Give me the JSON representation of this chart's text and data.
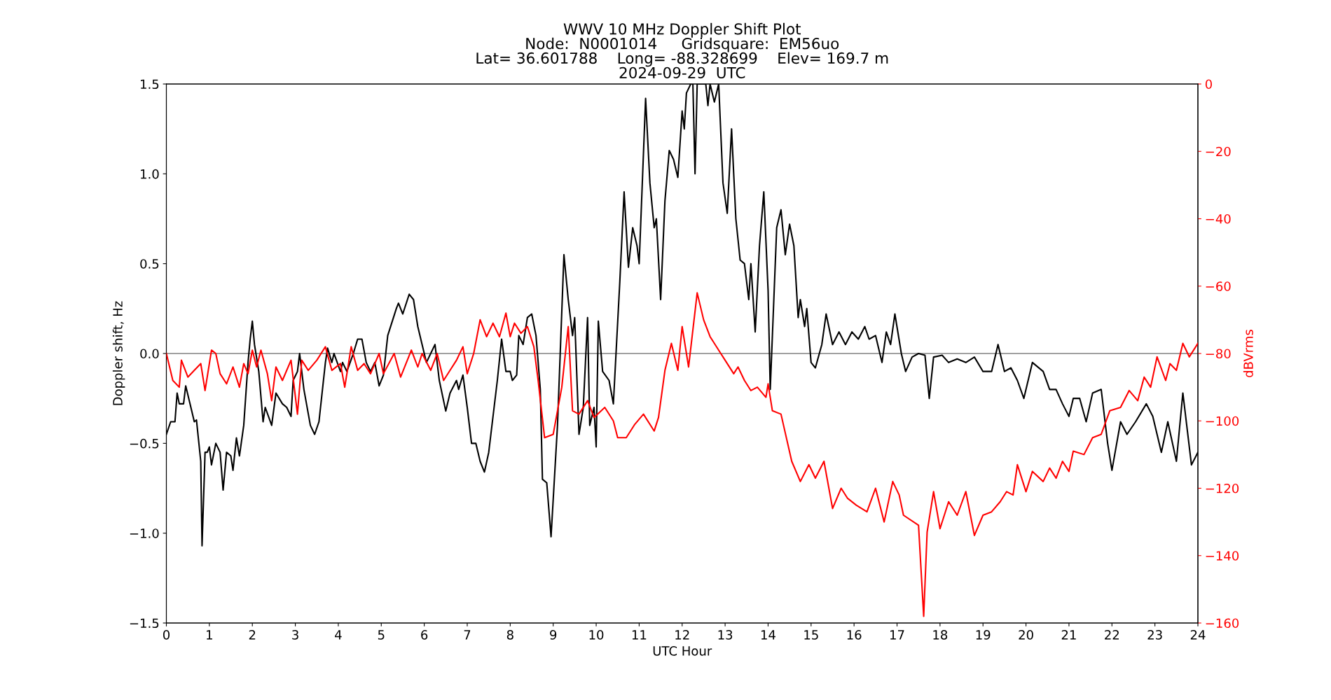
{
  "chart_data": {
    "type": "line",
    "title": "WWV 10 MHz Doppler Shift Plot\nNode:  N0001014     Gridsquare:  EM56uo\nLat= 36.601788    Long= -88.328699    Elev= 169.7 m\n2024-09-29  UTC",
    "xlabel": "UTC Hour",
    "ylabel": "Doppler shift, Hz",
    "y2label": "dBVrms",
    "xlim": [
      0,
      24
    ],
    "xticks": [
      0,
      1,
      2,
      3,
      4,
      5,
      6,
      7,
      8,
      9,
      10,
      11,
      12,
      13,
      14,
      15,
      16,
      17,
      18,
      19,
      20,
      21,
      22,
      23,
      24
    ],
    "ylim": [
      -1.5,
      1.5
    ],
    "yticks": [
      {
        "value": -1.5,
        "label": "−1.5"
      },
      {
        "value": -1.0,
        "label": "−1.0"
      },
      {
        "value": -0.5,
        "label": "−0.5"
      },
      {
        "value": 0,
        "label": "0.0"
      },
      {
        "value": 0.5,
        "label": "0.5"
      },
      {
        "value": 1,
        "label": "1.0"
      },
      {
        "value": 1.5,
        "label": "1.5"
      }
    ],
    "y2lim": [
      -160,
      0
    ],
    "y2ticks": [
      {
        "value": -160,
        "label": "−160"
      },
      {
        "value": -140,
        "label": "−140"
      },
      {
        "value": -120,
        "label": "−120"
      },
      {
        "value": -100,
        "label": "−100"
      },
      {
        "value": -80,
        "label": "−80"
      },
      {
        "value": -60,
        "label": "−60"
      },
      {
        "value": -40,
        "label": "−40"
      },
      {
        "value": -20,
        "label": "−20"
      },
      0
    ],
    "grid": false,
    "line_style": "solid",
    "marker": "none",
    "ref_lines": [
      {
        "axis": "y",
        "value": 0,
        "color": "#808080"
      }
    ],
    "series": [
      {
        "color": "#000000",
        "x": [
          0,
          0.1,
          0.2,
          0.25,
          0.3,
          0.4,
          0.45,
          0.55,
          0.65,
          0.7,
          0.8,
          0.83,
          0.9,
          0.95,
          1.0,
          1.05,
          1.15,
          1.25,
          1.32,
          1.4,
          1.5,
          1.55,
          1.63,
          1.7,
          1.8,
          1.9,
          1.95,
          2.0,
          2.05,
          2.15,
          2.25,
          2.3,
          2.45,
          2.55,
          2.7,
          2.8,
          2.9,
          2.95,
          3.05,
          3.1,
          3.2,
          3.35,
          3.45,
          3.55,
          3.7,
          3.75,
          3.85,
          3.9,
          4.05,
          4.1,
          4.2,
          4.35,
          4.45,
          4.55,
          4.65,
          4.75,
          4.85,
          4.95,
          5.05,
          5.15,
          5.35,
          5.4,
          5.5,
          5.65,
          5.75,
          5.85,
          5.95,
          6.05,
          6.15,
          6.25,
          6.35,
          6.5,
          6.6,
          6.75,
          6.8,
          6.9,
          7.0,
          7.1,
          7.2,
          7.3,
          7.4,
          7.5,
          7.7,
          7.8,
          7.9,
          8.0,
          8.05,
          8.15,
          8.2,
          8.3,
          8.4,
          8.5,
          8.6,
          8.7,
          8.75,
          8.85,
          8.95,
          9.1,
          9.25,
          9.35,
          9.45,
          9.5,
          9.6,
          9.7,
          9.8,
          9.85,
          9.95,
          10.0,
          10.05,
          10.15,
          10.3,
          10.4,
          10.55,
          10.65,
          10.75,
          10.85,
          10.95,
          11.0,
          11.15,
          11.25,
          11.35,
          11.4,
          11.5,
          11.6,
          11.7,
          11.8,
          11.9,
          12.0,
          12.05,
          12.1,
          12.2,
          12.25,
          12.3,
          12.35,
          12.55,
          12.6,
          12.65,
          12.75,
          12.85,
          12.95,
          13.05,
          13.15,
          13.25,
          13.35,
          13.45,
          13.55,
          13.6,
          13.7,
          13.8,
          13.9,
          14.0,
          14.05,
          14.2,
          14.3,
          14.4,
          14.5,
          14.6,
          14.7,
          14.75,
          14.85,
          14.9,
          15.0,
          15.1,
          15.25,
          15.35,
          15.5,
          15.65,
          15.8,
          15.95,
          16.1,
          16.25,
          16.35,
          16.5,
          16.65,
          16.75,
          16.85,
          16.95,
          17.1,
          17.2,
          17.35,
          17.5,
          17.65,
          17.75,
          17.85,
          18.05,
          18.2,
          18.4,
          18.6,
          18.8,
          19.0,
          19.2,
          19.35,
          19.5,
          19.65,
          19.8,
          19.95,
          20.15,
          20.4,
          20.55,
          20.7,
          20.85,
          21.0,
          21.1,
          21.25,
          21.4,
          21.55,
          21.75,
          21.9,
          22.0,
          22.2,
          22.35,
          22.55,
          22.8,
          22.95,
          23.05,
          23.15,
          23.3,
          23.5,
          23.65,
          23.85,
          24.0
        ],
        "values": [
          -0.45,
          -0.38,
          -0.38,
          -0.22,
          -0.28,
          -0.28,
          -0.18,
          -0.28,
          -0.38,
          -0.37,
          -0.6,
          -1.07,
          -0.55,
          -0.55,
          -0.52,
          -0.62,
          -0.5,
          -0.55,
          -0.76,
          -0.55,
          -0.57,
          -0.65,
          -0.47,
          -0.57,
          -0.4,
          -0.05,
          0.08,
          0.18,
          0.05,
          -0.1,
          -0.38,
          -0.3,
          -0.4,
          -0.22,
          -0.28,
          -0.3,
          -0.35,
          -0.15,
          -0.1,
          0.0,
          -0.2,
          -0.4,
          -0.45,
          -0.38,
          -0.05,
          0.03,
          -0.05,
          0.0,
          -0.1,
          -0.05,
          -0.1,
          0.0,
          0.08,
          0.08,
          -0.05,
          -0.1,
          -0.05,
          -0.18,
          -0.12,
          0.1,
          0.25,
          0.28,
          0.22,
          0.33,
          0.3,
          0.15,
          0.05,
          -0.05,
          0.0,
          0.05,
          -0.15,
          -0.32,
          -0.22,
          -0.15,
          -0.2,
          -0.12,
          -0.3,
          -0.5,
          -0.5,
          -0.6,
          -0.66,
          -0.55,
          -0.15,
          0.08,
          -0.1,
          -0.1,
          -0.15,
          -0.12,
          0.1,
          0.05,
          0.2,
          0.22,
          0.1,
          -0.2,
          -0.7,
          -0.72,
          -1.02,
          -0.4,
          0.55,
          0.3,
          0.1,
          0.2,
          -0.45,
          -0.3,
          0.2,
          -0.4,
          -0.3,
          -0.52,
          0.18,
          -0.1,
          -0.15,
          -0.28,
          0.4,
          0.9,
          0.48,
          0.7,
          0.6,
          0.5,
          1.42,
          0.95,
          0.7,
          0.75,
          0.3,
          0.85,
          1.13,
          1.08,
          0.98,
          1.35,
          1.25,
          1.45,
          1.5,
          1.5,
          1.0,
          1.5,
          1.5,
          1.38,
          1.5,
          1.4,
          1.5,
          0.95,
          0.78,
          1.25,
          0.75,
          0.52,
          0.5,
          0.3,
          0.5,
          0.12,
          0.6,
          0.9,
          0.35,
          -0.2,
          0.7,
          0.8,
          0.55,
          0.72,
          0.6,
          0.2,
          0.3,
          0.15,
          0.25,
          -0.05,
          -0.08,
          0.05,
          0.22,
          0.05,
          0.12,
          0.05,
          0.12,
          0.08,
          0.15,
          0.08,
          0.1,
          -0.05,
          0.12,
          0.05,
          0.22,
          0.0,
          -0.1,
          -0.02,
          0.0,
          -0.01,
          -0.25,
          -0.02,
          -0.01,
          -0.05,
          -0.03,
          -0.05,
          -0.02,
          -0.1,
          -0.1,
          0.05,
          -0.1,
          -0.08,
          -0.15,
          -0.25,
          -0.05,
          -0.1,
          -0.2,
          -0.2,
          -0.28,
          -0.35,
          -0.25,
          -0.25,
          -0.38,
          -0.22,
          -0.2,
          -0.5,
          -0.65,
          -0.38,
          -0.45,
          -0.38,
          -0.28,
          -0.35,
          -0.45,
          -0.55,
          -0.38,
          -0.6,
          -0.22,
          -0.62,
          -0.55
        ]
      },
      {
        "color": "#ff0000",
        "axis": "y2",
        "x": [
          0,
          0.15,
          0.3,
          0.35,
          0.5,
          0.65,
          0.8,
          0.9,
          1.05,
          1.15,
          1.25,
          1.4,
          1.55,
          1.7,
          1.8,
          1.9,
          2.0,
          2.1,
          2.2,
          2.35,
          2.45,
          2.55,
          2.7,
          2.9,
          3.05,
          3.15,
          3.3,
          3.5,
          3.7,
          3.85,
          4.05,
          4.15,
          4.3,
          4.45,
          4.6,
          4.75,
          4.95,
          5.05,
          5.3,
          5.45,
          5.7,
          5.85,
          5.95,
          6.15,
          6.3,
          6.45,
          6.6,
          6.75,
          6.9,
          7.0,
          7.15,
          7.3,
          7.45,
          7.6,
          7.75,
          7.9,
          8.0,
          8.1,
          8.25,
          8.4,
          8.55,
          8.65,
          8.8,
          9.0,
          9.1,
          9.2,
          9.35,
          9.45,
          9.6,
          9.8,
          9.95,
          10.2,
          10.4,
          10.5,
          10.7,
          10.9,
          11.1,
          11.35,
          11.45,
          11.6,
          11.75,
          11.9,
          12.0,
          12.15,
          12.35,
          12.5,
          12.65,
          12.85,
          13.0,
          13.2,
          13.3,
          13.45,
          13.6,
          13.75,
          13.95,
          14.0,
          14.1,
          14.3,
          14.55,
          14.75,
          14.95,
          15.1,
          15.3,
          15.5,
          15.7,
          15.85,
          16.05,
          16.3,
          16.5,
          16.7,
          16.9,
          17.05,
          17.15,
          17.5,
          17.62,
          17.7,
          17.85,
          18.0,
          18.2,
          18.4,
          18.6,
          18.8,
          19.0,
          19.2,
          19.4,
          19.55,
          19.7,
          19.8,
          20.0,
          20.15,
          20.4,
          20.55,
          20.7,
          20.85,
          21.0,
          21.1,
          21.35,
          21.55,
          21.75,
          21.95,
          22.2,
          22.4,
          22.6,
          22.75,
          22.9,
          23.05,
          23.25,
          23.35,
          23.5,
          23.65,
          23.8,
          24.0
        ],
        "values": [
          -80,
          -88,
          -90,
          -82,
          -87,
          -85,
          -83,
          -91,
          -79,
          -80,
          -86,
          -89,
          -84,
          -90,
          -83,
          -86,
          -79,
          -84,
          -79,
          -86,
          -94,
          -84,
          -88,
          -82,
          -98,
          -82,
          -85,
          -82,
          -78,
          -85,
          -83,
          -90,
          -78,
          -85,
          -83,
          -86,
          -80,
          -86,
          -80,
          -87,
          -79,
          -84,
          -80,
          -85,
          -80,
          -88,
          -85,
          -82,
          -78,
          -86,
          -80,
          -70,
          -75,
          -71,
          -75,
          -68,
          -75,
          -71,
          -74,
          -72,
          -78,
          -88,
          -105,
          -104,
          -97,
          -90,
          -72,
          -97,
          -98,
          -94,
          -99,
          -96,
          -100,
          -105,
          -105,
          -101,
          -98,
          -103,
          -99,
          -85,
          -77,
          -85,
          -72,
          -84,
          -62,
          -70,
          -75,
          -79,
          -82,
          -86,
          -84,
          -88,
          -91,
          -90,
          -93,
          -89,
          -97,
          -98,
          -112,
          -118,
          -113,
          -117,
          -112,
          -126,
          -120,
          -123,
          -125,
          -127,
          -120,
          -130,
          -118,
          -122,
          -128,
          -131,
          -158,
          -133,
          -121,
          -132,
          -124,
          -128,
          -121,
          -134,
          -128,
          -127,
          -124,
          -121,
          -122,
          -113,
          -121,
          -115,
          -118,
          -114,
          -117,
          -112,
          -115,
          -109,
          -110,
          -105,
          -104,
          -97,
          -96,
          -91,
          -94,
          -87,
          -90,
          -81,
          -88,
          -83,
          -85,
          -77,
          -81,
          -77
        ]
      }
    ]
  }
}
